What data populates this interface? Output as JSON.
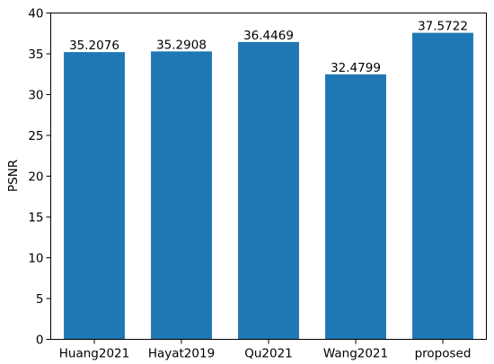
{
  "chart_data": {
    "type": "bar",
    "categories": [
      "Huang2021",
      "Hayat2019",
      "Qu2021",
      "Wang2021",
      "proposed"
    ],
    "values": [
      35.2076,
      35.2908,
      36.4469,
      32.4799,
      37.5722
    ],
    "data_labels": [
      "35.2076",
      "35.2908",
      "36.4469",
      "32.4799",
      "37.5722"
    ],
    "title": "",
    "xlabel": "",
    "ylabel": "PSNR",
    "ylim": [
      0,
      40
    ],
    "yticks": [
      0,
      5,
      10,
      15,
      20,
      25,
      30,
      35,
      40
    ],
    "grid": false,
    "legend": "none",
    "bar_color": "#1f77b4"
  }
}
